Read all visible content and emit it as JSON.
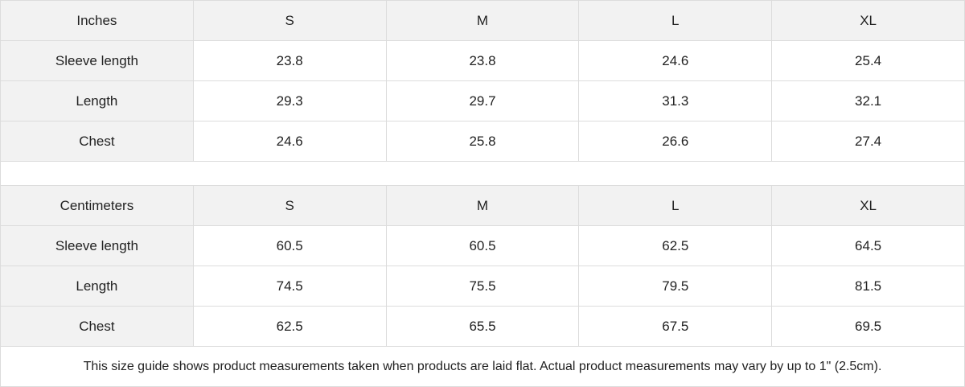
{
  "inches": {
    "header": [
      "Inches",
      "S",
      "M",
      "L",
      "XL"
    ],
    "rows": [
      [
        "Sleeve length",
        "23.8",
        "23.8",
        "24.6",
        "25.4"
      ],
      [
        "Length",
        "29.3",
        "29.7",
        "31.3",
        "32.1"
      ],
      [
        "Chest",
        "24.6",
        "25.8",
        "26.6",
        "27.4"
      ]
    ]
  },
  "centimeters": {
    "header": [
      "Centimeters",
      "S",
      "M",
      "L",
      "XL"
    ],
    "rows": [
      [
        "Sleeve length",
        "60.5",
        "60.5",
        "62.5",
        "64.5"
      ],
      [
        "Length",
        "74.5",
        "75.5",
        "79.5",
        "81.5"
      ],
      [
        "Chest",
        "62.5",
        "65.5",
        "67.5",
        "69.5"
      ]
    ]
  },
  "footer_note": "This size guide shows product measurements taken when products are laid flat.  Actual product measurements may vary by up to 1\" (2.5cm).",
  "colors": {
    "header_bg": "#f2f2f2",
    "border": "#dcdcdc"
  }
}
